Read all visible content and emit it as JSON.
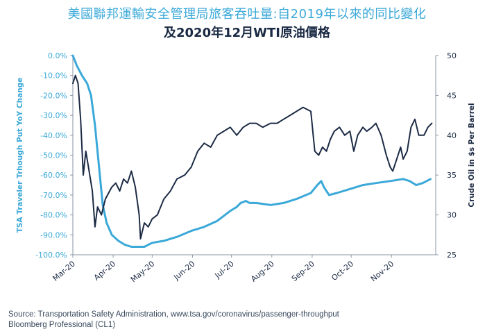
{
  "title": "美國聯邦運輸安全管理局旅客吞吐量:自2019年以來的同比變化",
  "subtitle": "及2020年12月WTI原油價格",
  "source_line1": "Source: Transportation Safety Administration, www.tsa.gov/coronavirus/passenger-throughput",
  "source_line2": "Bloomberg Professional (CL1)",
  "colors": {
    "tsa": "#3aa8d8",
    "oil": "#1b2a44",
    "axis": "#8a95a5"
  },
  "chart_data": {
    "type": "line",
    "x_ticks": [
      "Mar-20",
      "Apr-20",
      "May-20",
      "Jun-20",
      "Jul-20",
      "Aug-20",
      "Sep-20",
      "Oct-20",
      "Nov-20"
    ],
    "xlim": [
      "2020-03-01",
      "2020-12-05"
    ],
    "y_left": {
      "label": "TSA Traveler Trhough Put YoY Change",
      "ticks": [
        "0.0%",
        "-10.0%",
        "-20.0%",
        "-30.0%",
        "-40.0%",
        "-50.0%",
        "-60.0%",
        "-70.0%",
        "-80.0%",
        "-90.0%",
        "-100.0%"
      ],
      "ylim": [
        -100,
        0
      ]
    },
    "y_right": {
      "label": "Crude Oil in $s Per Barrel",
      "ticks": [
        "50",
        "45",
        "40",
        "35",
        "30",
        "25"
      ],
      "ylim": [
        25,
        50
      ]
    },
    "series": [
      {
        "axis": "left",
        "points": [
          [
            "2020-03-01",
            0
          ],
          [
            "2020-03-04",
            -5
          ],
          [
            "2020-03-08",
            -10
          ],
          [
            "2020-03-12",
            -14
          ],
          [
            "2020-03-15",
            -20
          ],
          [
            "2020-03-18",
            -35
          ],
          [
            "2020-03-21",
            -55
          ],
          [
            "2020-03-24",
            -75
          ],
          [
            "2020-03-27",
            -84
          ],
          [
            "2020-03-31",
            -90
          ],
          [
            "2020-04-05",
            -93
          ],
          [
            "2020-04-10",
            -95
          ],
          [
            "2020-04-15",
            -96
          ],
          [
            "2020-04-25",
            -96
          ],
          [
            "2020-05-01",
            -94
          ],
          [
            "2020-05-10",
            -93
          ],
          [
            "2020-05-20",
            -91
          ],
          [
            "2020-05-31",
            -88
          ],
          [
            "2020-06-10",
            -86
          ],
          [
            "2020-06-20",
            -83
          ],
          [
            "2020-06-30",
            -78
          ],
          [
            "2020-07-05",
            -76
          ],
          [
            "2020-07-08",
            -74
          ],
          [
            "2020-07-12",
            -73
          ],
          [
            "2020-07-15",
            -74
          ],
          [
            "2020-07-20",
            -74
          ],
          [
            "2020-07-31",
            -75
          ],
          [
            "2020-08-10",
            -74
          ],
          [
            "2020-08-20",
            -72
          ],
          [
            "2020-08-31",
            -69
          ],
          [
            "2020-09-05",
            -65
          ],
          [
            "2020-09-08",
            -63
          ],
          [
            "2020-09-10",
            -66
          ],
          [
            "2020-09-14",
            -70
          ],
          [
            "2020-09-20",
            -69
          ],
          [
            "2020-09-30",
            -67
          ],
          [
            "2020-10-10",
            -65
          ],
          [
            "2020-10-20",
            -64
          ],
          [
            "2020-10-31",
            -63
          ],
          [
            "2020-11-10",
            -62
          ],
          [
            "2020-11-15",
            -63
          ],
          [
            "2020-11-20",
            -65
          ],
          [
            "2020-11-25",
            -64
          ],
          [
            "2020-12-01",
            -62
          ]
        ]
      },
      {
        "axis": "right",
        "points": [
          [
            "2020-03-01",
            46.5
          ],
          [
            "2020-03-03",
            47.5
          ],
          [
            "2020-03-05",
            46.5
          ],
          [
            "2020-03-07",
            42
          ],
          [
            "2020-03-09",
            35
          ],
          [
            "2020-03-11",
            38
          ],
          [
            "2020-03-13",
            36
          ],
          [
            "2020-03-16",
            33
          ],
          [
            "2020-03-18",
            28.5
          ],
          [
            "2020-03-20",
            31
          ],
          [
            "2020-03-23",
            30
          ],
          [
            "2020-03-26",
            32
          ],
          [
            "2020-03-31",
            33.5
          ],
          [
            "2020-04-03",
            34
          ],
          [
            "2020-04-06",
            33
          ],
          [
            "2020-04-09",
            34.5
          ],
          [
            "2020-04-12",
            34
          ],
          [
            "2020-04-15",
            35.5
          ],
          [
            "2020-04-18",
            33.5
          ],
          [
            "2020-04-21",
            30
          ],
          [
            "2020-04-22",
            27
          ],
          [
            "2020-04-25",
            29
          ],
          [
            "2020-04-28",
            28.5
          ],
          [
            "2020-05-01",
            29.5
          ],
          [
            "2020-05-05",
            30
          ],
          [
            "2020-05-10",
            32
          ],
          [
            "2020-05-15",
            33
          ],
          [
            "2020-05-20",
            34.5
          ],
          [
            "2020-05-26",
            35
          ],
          [
            "2020-05-31",
            36
          ],
          [
            "2020-06-05",
            38
          ],
          [
            "2020-06-10",
            39
          ],
          [
            "2020-06-15",
            38.5
          ],
          [
            "2020-06-20",
            40
          ],
          [
            "2020-06-25",
            40.5
          ],
          [
            "2020-06-30",
            41
          ],
          [
            "2020-07-05",
            40
          ],
          [
            "2020-07-10",
            41
          ],
          [
            "2020-07-15",
            41.5
          ],
          [
            "2020-07-20",
            41.5
          ],
          [
            "2020-07-25",
            41
          ],
          [
            "2020-07-31",
            41.5
          ],
          [
            "2020-08-05",
            41.5
          ],
          [
            "2020-08-10",
            42
          ],
          [
            "2020-08-15",
            42.5
          ],
          [
            "2020-08-20",
            43
          ],
          [
            "2020-08-25",
            43.5
          ],
          [
            "2020-08-31",
            43
          ],
          [
            "2020-09-03",
            38
          ],
          [
            "2020-09-06",
            37.5
          ],
          [
            "2020-09-09",
            38.5
          ],
          [
            "2020-09-12",
            38
          ],
          [
            "2020-09-15",
            39.5
          ],
          [
            "2020-09-18",
            40.5
          ],
          [
            "2020-09-22",
            41
          ],
          [
            "2020-09-26",
            40
          ],
          [
            "2020-09-30",
            40.5
          ],
          [
            "2020-10-03",
            38
          ],
          [
            "2020-10-06",
            40
          ],
          [
            "2020-10-10",
            41
          ],
          [
            "2020-10-13",
            40.5
          ],
          [
            "2020-10-17",
            41
          ],
          [
            "2020-10-20",
            41.5
          ],
          [
            "2020-10-24",
            40
          ],
          [
            "2020-10-28",
            37.5
          ],
          [
            "2020-10-31",
            36
          ],
          [
            "2020-11-02",
            35.5
          ],
          [
            "2020-11-05",
            37
          ],
          [
            "2020-11-08",
            38.5
          ],
          [
            "2020-11-10",
            37
          ],
          [
            "2020-11-13",
            38
          ],
          [
            "2020-11-16",
            41
          ],
          [
            "2020-11-19",
            42
          ],
          [
            "2020-11-22",
            40
          ],
          [
            "2020-11-26",
            40
          ],
          [
            "2020-11-29",
            41
          ],
          [
            "2020-12-02",
            41.5
          ]
        ]
      }
    ]
  }
}
